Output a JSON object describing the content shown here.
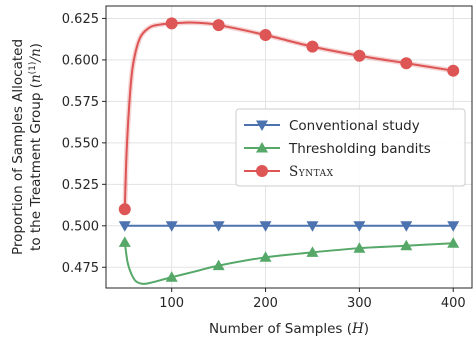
{
  "chart_data": {
    "type": "line",
    "xlabel_text": "Number of Samples (",
    "xlabel_math": "H",
    "xlabel_end": ")",
    "ylabel_line1": "Proportion of Samples Allocated",
    "ylabel_line2_text": "to the Treatment Group (",
    "ylabel_line2_math": "n",
    "ylabel_line2_sup": "(1)",
    "ylabel_line2_rest": "/n",
    "ylabel_line2_end": ")",
    "xlim": [
      30,
      420
    ],
    "ylim": [
      0.4625,
      0.6325
    ],
    "x_ticks": [
      100,
      200,
      300,
      400
    ],
    "y_ticks": [
      0.475,
      0.5,
      0.525,
      0.55,
      0.575,
      0.6,
      0.625
    ],
    "grid": true,
    "legend_placement": "center-right",
    "series": [
      {
        "name": "Conventional study",
        "name_style": "normal",
        "color": "#4c72b0",
        "marker": "triangle-down",
        "x": [
          50,
          100,
          150,
          200,
          250,
          300,
          350,
          400
        ],
        "values": [
          0.5,
          0.5,
          0.5,
          0.5,
          0.5,
          0.5,
          0.5,
          0.5
        ],
        "curve_x": [
          50,
          400
        ],
        "curve_y": [
          0.5,
          0.5
        ]
      },
      {
        "name": "Thresholding bandits",
        "name_style": "normal",
        "color": "#55a868",
        "marker": "triangle-up",
        "x": [
          50,
          100,
          150,
          200,
          250,
          300,
          350,
          400
        ],
        "values": [
          0.49,
          0.469,
          0.476,
          0.481,
          0.484,
          0.4865,
          0.488,
          0.4895
        ],
        "curve_x": [
          50,
          53,
          57,
          62,
          70,
          80,
          90,
          100,
          125,
          150,
          200,
          250,
          300,
          350,
          400
        ],
        "curve_y": [
          0.49,
          0.478,
          0.471,
          0.4665,
          0.465,
          0.466,
          0.4675,
          0.469,
          0.4725,
          0.476,
          0.481,
          0.484,
          0.4865,
          0.488,
          0.4895
        ]
      },
      {
        "name": "Syntax",
        "name_style": "small-caps",
        "color": "#dd5555",
        "marker": "circle",
        "x": [
          50,
          100,
          150,
          200,
          250,
          300,
          350,
          400
        ],
        "values": [
          0.51,
          0.622,
          0.621,
          0.615,
          0.608,
          0.6025,
          0.598,
          0.5935
        ],
        "curve_x": [
          50,
          52,
          55,
          58,
          62,
          66,
          70,
          75,
          80,
          90,
          100,
          115,
          130,
          150,
          200,
          250,
          300,
          350,
          400
        ],
        "curve_y": [
          0.51,
          0.545,
          0.575,
          0.594,
          0.606,
          0.613,
          0.6165,
          0.619,
          0.6205,
          0.6215,
          0.622,
          0.6225,
          0.6223,
          0.621,
          0.615,
          0.608,
          0.6025,
          0.598,
          0.5935
        ]
      }
    ]
  }
}
